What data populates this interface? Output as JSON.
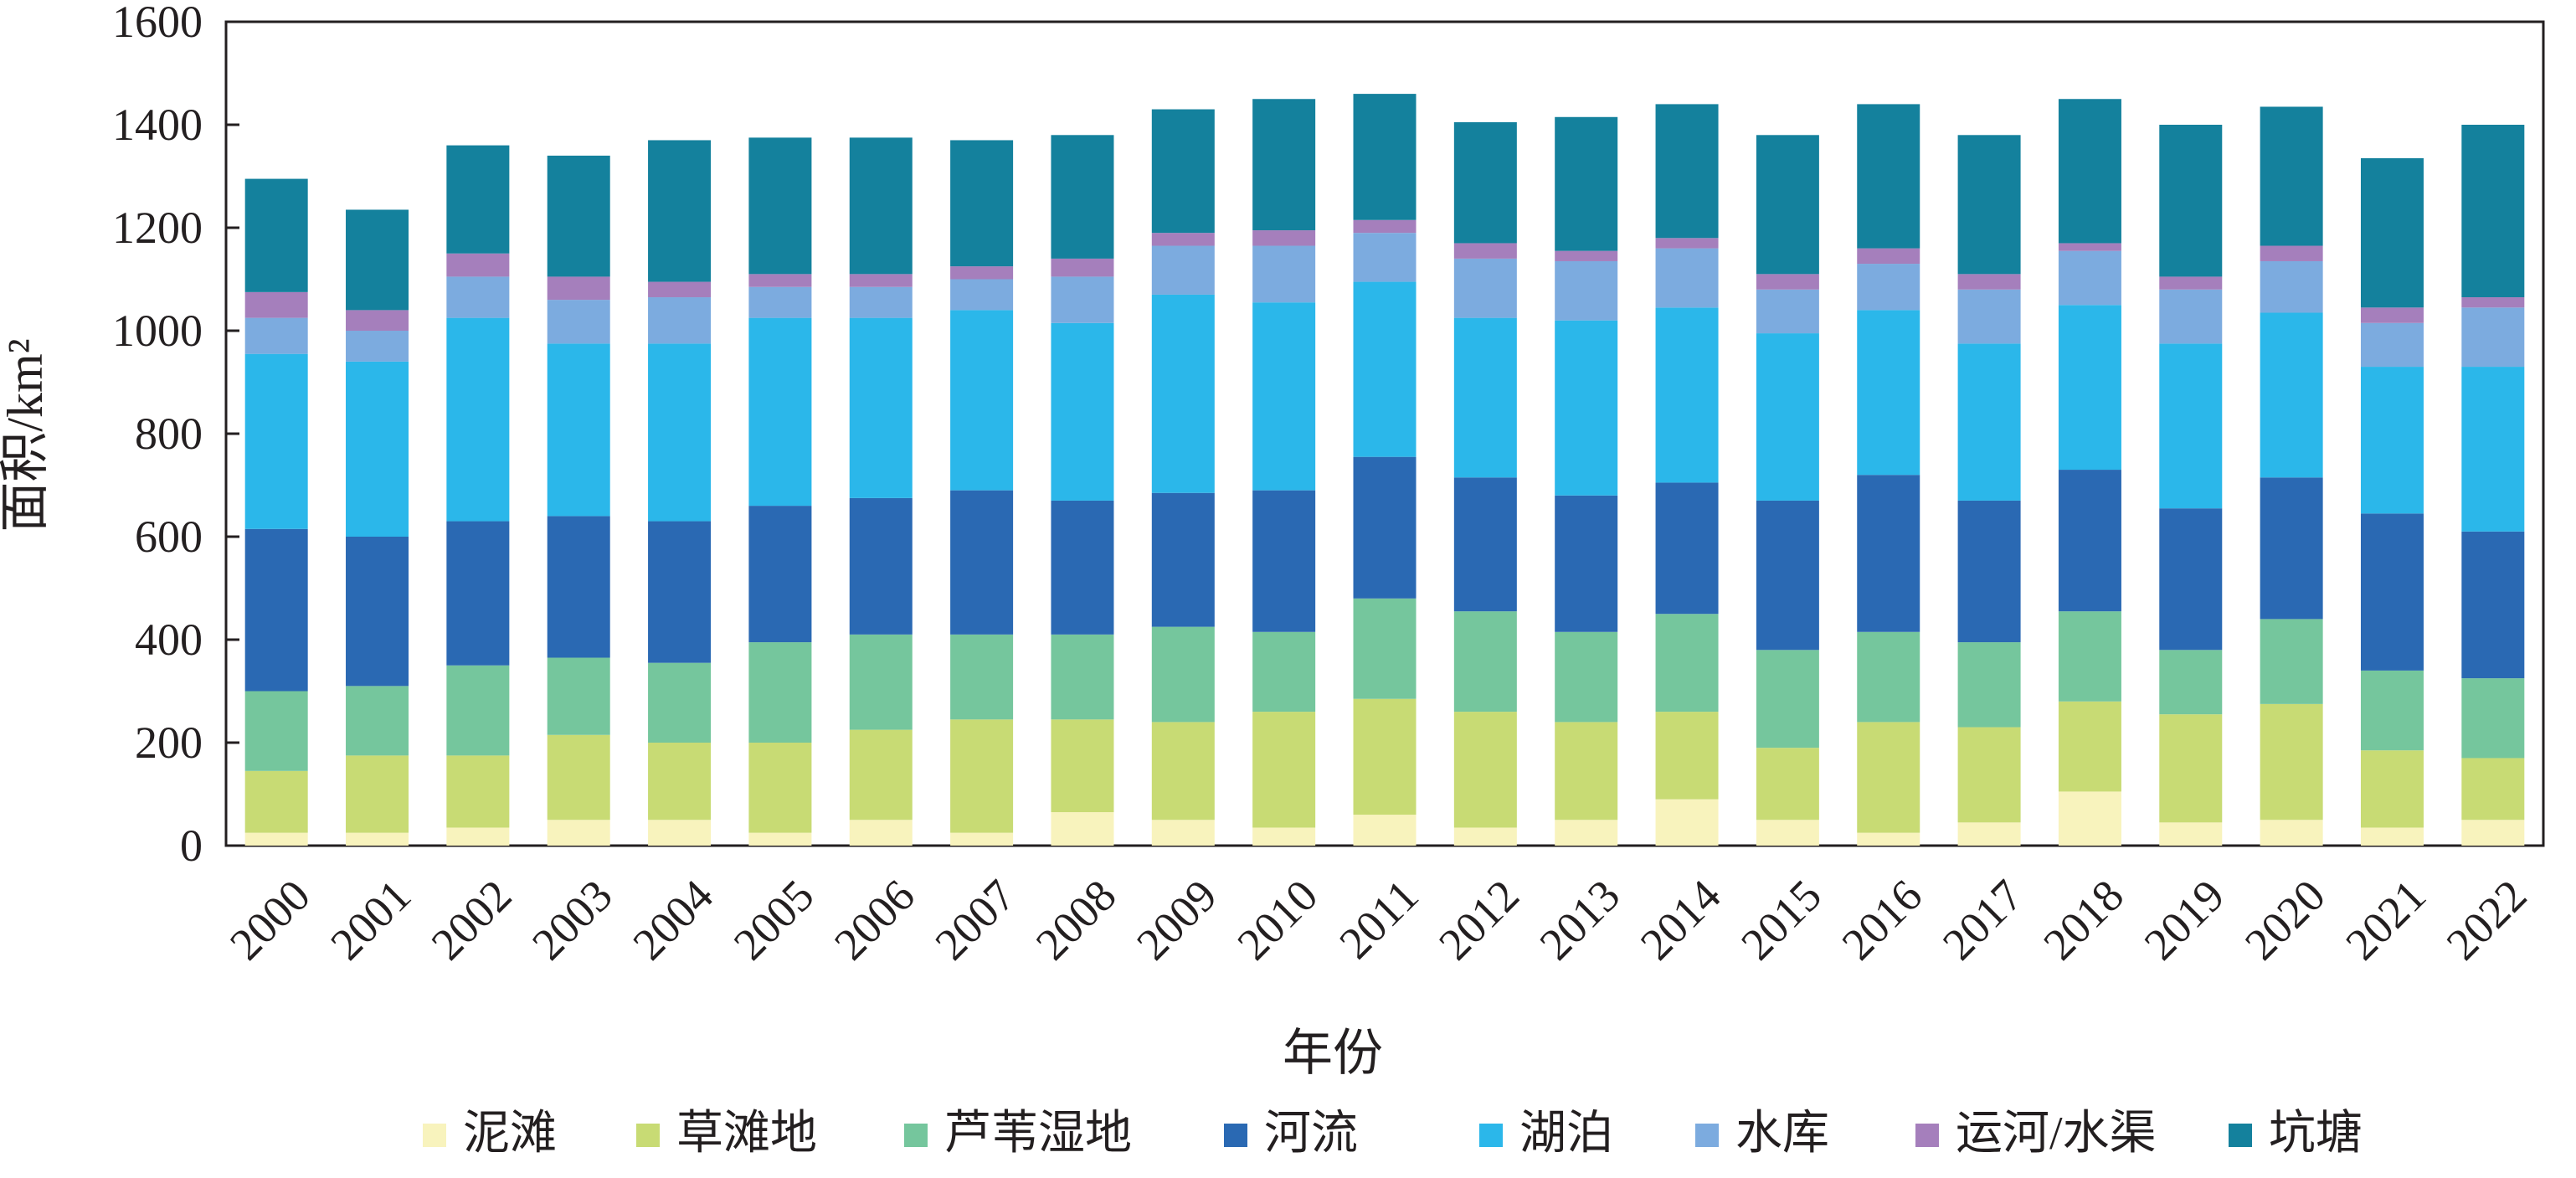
{
  "chart_data": {
    "type": "bar",
    "stacked": true,
    "xlabel": "年份",
    "ylabel": "面积/km²",
    "ylim": [
      0,
      1600
    ],
    "yticks": [
      0,
      200,
      400,
      600,
      800,
      1000,
      1200,
      1400,
      1600
    ],
    "grid": false,
    "legend_position": "bottom",
    "categories": [
      "2000",
      "2001",
      "2002",
      "2003",
      "2004",
      "2005",
      "2006",
      "2007",
      "2008",
      "2009",
      "2010",
      "2011",
      "2012",
      "2013",
      "2014",
      "2015",
      "2016",
      "2017",
      "2018",
      "2019",
      "2020",
      "2021",
      "2022"
    ],
    "series": [
      {
        "name": "泥滩",
        "color": "#f8f3bd",
        "values": [
          25,
          25,
          35,
          50,
          50,
          25,
          50,
          25,
          65,
          50,
          35,
          60,
          35,
          50,
          90,
          50,
          25,
          45,
          105,
          45,
          50,
          35,
          50
        ]
      },
      {
        "name": "草滩地",
        "color": "#c8db74",
        "values": [
          120,
          150,
          140,
          165,
          150,
          175,
          175,
          220,
          180,
          190,
          225,
          225,
          225,
          190,
          170,
          140,
          215,
          185,
          175,
          210,
          225,
          150,
          120
        ]
      },
      {
        "name": "芦苇湿地",
        "color": "#75c69d",
        "values": [
          155,
          135,
          175,
          150,
          155,
          195,
          185,
          165,
          165,
          185,
          155,
          195,
          195,
          175,
          190,
          190,
          175,
          165,
          175,
          125,
          165,
          155,
          155
        ]
      },
      {
        "name": "河流",
        "color": "#2a69b3",
        "values": [
          315,
          290,
          280,
          275,
          275,
          265,
          265,
          280,
          260,
          260,
          275,
          275,
          260,
          265,
          255,
          290,
          305,
          275,
          275,
          275,
          275,
          305,
          285
        ]
      },
      {
        "name": "湖泊",
        "color": "#2bb7ea",
        "values": [
          340,
          340,
          395,
          335,
          345,
          365,
          350,
          350,
          345,
          385,
          365,
          340,
          310,
          340,
          340,
          325,
          320,
          305,
          320,
          320,
          320,
          285,
          320
        ]
      },
      {
        "name": "水库",
        "color": "#7cabdf",
        "values": [
          70,
          60,
          80,
          85,
          90,
          60,
          60,
          60,
          90,
          95,
          110,
          95,
          115,
          115,
          115,
          85,
          90,
          105,
          105,
          105,
          100,
          85,
          115
        ]
      },
      {
        "name": "运河/水渠",
        "color": "#a57fbc",
        "values": [
          50,
          40,
          45,
          45,
          30,
          25,
          25,
          25,
          35,
          25,
          30,
          25,
          30,
          20,
          20,
          30,
          30,
          30,
          15,
          25,
          30,
          30,
          20
        ]
      },
      {
        "name": "坑塘",
        "color": "#14819d",
        "values": [
          220,
          195,
          210,
          235,
          275,
          265,
          265,
          245,
          240,
          240,
          255,
          245,
          235,
          260,
          260,
          270,
          280,
          270,
          280,
          295,
          270,
          290,
          335
        ]
      }
    ]
  }
}
